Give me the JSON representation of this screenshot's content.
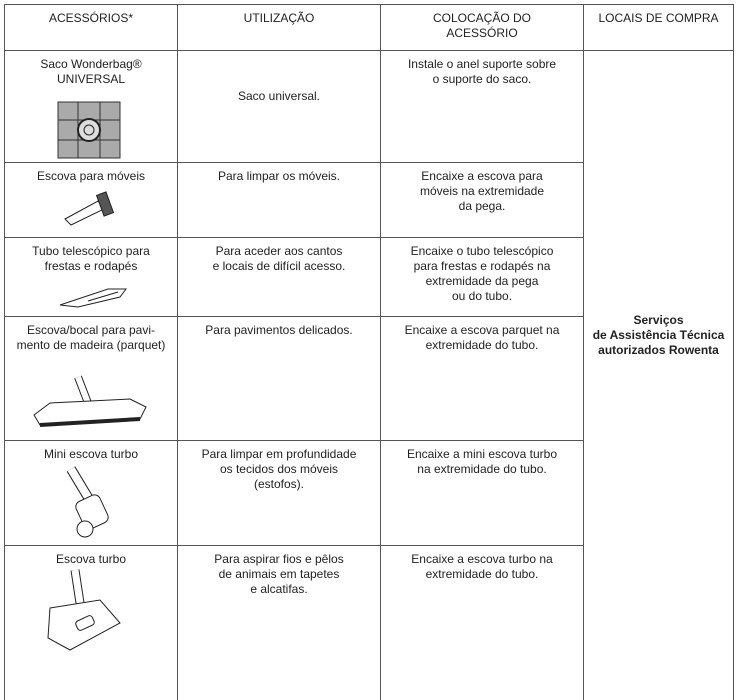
{
  "table": {
    "header": [
      "ACESSÓRIOS*",
      "UTILIZAÇÃO",
      "COLOCAÇÃO DO\nACESSÓRIO",
      "LOCAIS DE COMPRA"
    ],
    "rows": [
      [
        "Saco Wonderbag®\nUNIVERSAL",
        "Saco universal.",
        "Instale o anel suporte sobre\no suporte do saco."
      ],
      [
        "Escova para móveis",
        "Para limpar os móveis.",
        "Encaixe a escova para\nmóveis na extremidade\nda pega."
      ],
      [
        "Tubo telescópico para\nfrestas e rodapés",
        "Para aceder aos cantos\ne locais de difícil acesso.",
        "Encaixe o tubo telescópico\npara frestas e rodapés na\nextremidade da pega\nou do tubo."
      ],
      [
        "Escova/bocal para pavi-\nmento de madeira (parquet)",
        "Para pavimentos delicados.",
        "Encaixe a escova parquet na\nextremidade do tubo."
      ],
      [
        "Mini escova turbo",
        "Para limpar em profundidade\nos tecidos dos móveis\n(estofos).",
        "Encaixe a mini escova turbo\nna extremidade do tubo."
      ],
      [
        "Escova turbo",
        "Para aspirar fios e pêlos\nde animais em tapetes\ne alcatifas.",
        "Encaixe a escova turbo na\nextremidade do tubo."
      ]
    ],
    "location": "Serviços\nde Assistência Técnica\nautorizados Rowenta"
  }
}
